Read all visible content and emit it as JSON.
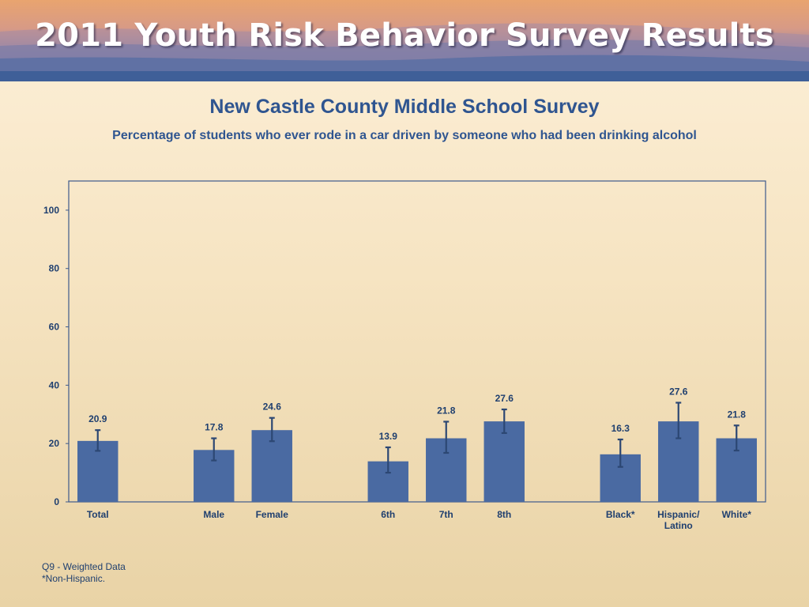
{
  "banner": {
    "title": "2011 Youth Risk Behavior Survey Results"
  },
  "colors": {
    "bar": "#4a6aa2",
    "axis": "#3e5a8c",
    "text": "#1f3f6f",
    "title": "#2f5590",
    "error": "#2c4773"
  },
  "chart_data": {
    "type": "bar",
    "title": "New Castle County Middle School Survey",
    "subtitle": "Percentage of students who ever rode in a car driven by someone who had been drinking alcohol",
    "xlabel": "",
    "ylabel": "",
    "ylim": [
      0,
      110
    ],
    "yticks": [
      0,
      20,
      40,
      60,
      80,
      100
    ],
    "grid": false,
    "categories": [
      "Total",
      "Male",
      "Female",
      "6th",
      "7th",
      "8th",
      "Black*",
      "Hispanic/ Latino",
      "White*"
    ],
    "category_lines": [
      [
        "Total"
      ],
      [
        "Male"
      ],
      [
        "Female"
      ],
      [
        "6th"
      ],
      [
        "7th"
      ],
      [
        "8th"
      ],
      [
        "Black*"
      ],
      [
        "Hispanic/",
        "Latino"
      ],
      [
        "White*"
      ]
    ],
    "group_breaks_after": [
      0,
      2,
      5
    ],
    "values": [
      20.9,
      17.8,
      24.6,
      13.9,
      21.8,
      27.6,
      16.3,
      27.6,
      21.8
    ],
    "value_labels": [
      "20.9",
      "17.8",
      "24.6",
      "13.9",
      "21.8",
      "27.6",
      "16.3",
      "27.6",
      "21.8"
    ],
    "ci_low": [
      17.5,
      14.2,
      20.8,
      10.0,
      16.8,
      23.6,
      12.0,
      21.8,
      17.6
    ],
    "ci_high": [
      24.6,
      21.8,
      28.8,
      18.7,
      27.5,
      31.7,
      21.4,
      34.0,
      26.2
    ]
  },
  "footnotes": {
    "line1": "Q9 - Weighted Data",
    "line2": "*Non-Hispanic."
  }
}
